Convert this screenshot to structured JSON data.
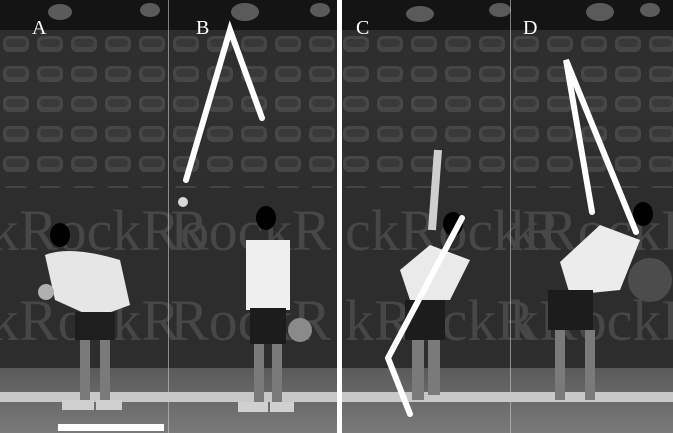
{
  "figure": {
    "panels": [
      {
        "label": "A",
        "icon": "tennis-serve-phase-a"
      },
      {
        "label": "B",
        "icon": "tennis-serve-phase-b"
      },
      {
        "label": "C",
        "icon": "tennis-serve-phase-c"
      },
      {
        "label": "D",
        "icon": "tennis-serve-phase-d"
      }
    ],
    "background_text": "RockRockRock",
    "colors": {
      "stand": "#3a3a3a",
      "banner": "#2c2c2c",
      "court": "#6e6e6e",
      "overlay_line": "#ffffff"
    }
  }
}
